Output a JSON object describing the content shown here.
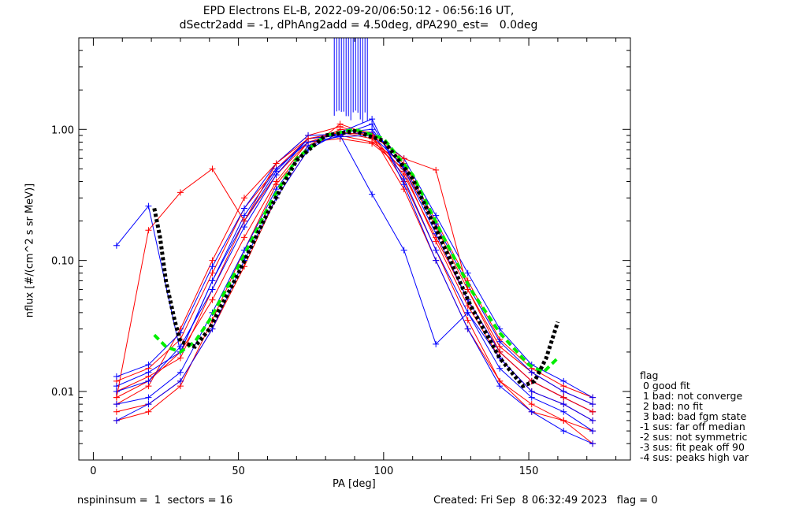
{
  "header": {
    "title_line1": "EPD Electrons EL-B, 2022-09-20/06:50:12 - 06:56:16 UT,",
    "title_line2": "dSectr2add = -1, dPhAng2add = 4.50deg, dPA290_est=   0.0deg"
  },
  "footer": {
    "left": "nspininsum =  1  sectors = 16",
    "right": "Created: Fri Sep  8 06:32:49 2023   flag = 0"
  },
  "legend": {
    "title": "flag",
    "items": [
      " 0 good fit",
      " 1 bad: not converge",
      " 2 bad: no fit",
      " 3 bad: bad fgm state",
      "-1 sus: far off median",
      "-2 sus: not symmetric",
      "-3 sus: fit peak off 90",
      "-4 sus: peaks high var"
    ]
  },
  "colors": {
    "red": "#ff0000",
    "blue": "#0000ff",
    "green": "#00ee00",
    "black": "#000000"
  },
  "chart_data": {
    "type": "line",
    "xlabel": "PA [deg]",
    "ylabel": "nflux [#/(cm^2 s sr MeV)]",
    "xlim": [
      -5,
      185
    ],
    "ylim": [
      0.003,
      5
    ],
    "yscale": "log",
    "xticks": [
      0,
      50,
      100,
      150
    ],
    "xtick_labels": [
      "0",
      "50",
      "100",
      "150"
    ],
    "yticks": [
      0.01,
      0.1,
      1.0
    ],
    "ytick_labels": [
      "0.01",
      "0.10",
      "1.00"
    ],
    "pa_bins": [
      8,
      19,
      30,
      41,
      52,
      63,
      74,
      85,
      96,
      107,
      118,
      129,
      140,
      151,
      162,
      172
    ],
    "series": [
      {
        "color": "red",
        "values": [
          0.009,
          0.012,
          0.02,
          0.05,
          0.15,
          0.4,
          0.8,
          0.95,
          0.85,
          0.45,
          0.15,
          0.05,
          0.02,
          0.012,
          0.009,
          0.007
        ]
      },
      {
        "color": "red",
        "values": [
          0.007,
          0.008,
          0.012,
          0.03,
          0.09,
          0.3,
          0.7,
          1.1,
          0.9,
          0.35,
          0.1,
          0.03,
          0.012,
          0.007,
          0.006,
          0.005
        ]
      },
      {
        "color": "red",
        "values": [
          0.012,
          0.015,
          0.025,
          0.08,
          0.25,
          0.5,
          0.85,
          0.9,
          0.8,
          0.55,
          0.2,
          0.07,
          0.025,
          0.015,
          0.011,
          0.009
        ]
      },
      {
        "color": "red",
        "values": [
          0.006,
          0.007,
          0.011,
          0.035,
          0.12,
          0.38,
          0.75,
          1.0,
          0.95,
          0.4,
          0.12,
          0.035,
          0.012,
          0.008,
          0.006,
          0.004
        ]
      },
      {
        "color": "red",
        "values": [
          0.01,
          0.013,
          0.018,
          0.06,
          0.2,
          0.45,
          0.8,
          0.85,
          0.78,
          0.5,
          0.18,
          0.06,
          0.022,
          0.014,
          0.01,
          0.008
        ]
      },
      {
        "color": "red",
        "values": [
          0.008,
          0.011,
          0.03,
          0.1,
          0.3,
          0.55,
          0.9,
          1.05,
          0.88,
          0.48,
          0.14,
          0.045,
          0.018,
          0.01,
          0.008,
          0.006
        ]
      },
      {
        "color": "blue",
        "values": [
          0.01,
          0.012,
          0.022,
          0.06,
          0.18,
          0.45,
          0.85,
          0.95,
          1.0,
          0.5,
          0.16,
          0.05,
          0.02,
          0.012,
          0.009,
          0.007
        ]
      },
      {
        "color": "blue",
        "values": [
          0.008,
          0.009,
          0.014,
          0.04,
          0.12,
          0.35,
          0.75,
          0.9,
          1.1,
          0.42,
          0.12,
          0.04,
          0.015,
          0.009,
          0.007,
          0.005
        ]
      },
      {
        "color": "blue",
        "values": [
          0.013,
          0.016,
          0.028,
          0.09,
          0.25,
          0.55,
          0.9,
          0.92,
          0.95,
          0.6,
          0.22,
          0.08,
          0.03,
          0.016,
          0.012,
          0.009
        ]
      },
      {
        "color": "blue",
        "values": [
          0.006,
          0.008,
          0.012,
          0.03,
          0.1,
          0.3,
          0.7,
          0.95,
          1.2,
          0.38,
          0.1,
          0.03,
          0.011,
          0.007,
          0.005,
          0.004
        ]
      },
      {
        "color": "blue",
        "values": [
          0.011,
          0.014,
          0.02,
          0.07,
          0.22,
          0.5,
          0.8,
          0.88,
          0.9,
          0.52,
          0.19,
          0.065,
          0.024,
          0.014,
          0.01,
          0.008
        ]
      },
      {
        "color": "blue",
        "values": [
          0.13,
          0.26,
          0.02,
          0.07,
          0.2,
          0.48,
          0.85,
          0.9,
          0.32,
          0.12,
          0.023,
          0.04,
          0.018,
          0.01,
          0.008,
          0.006
        ]
      },
      {
        "color": "red",
        "values": [
          0.009,
          0.17,
          0.33,
          0.5,
          0.2,
          0.55,
          0.85,
          0.95,
          0.9,
          0.6,
          0.49,
          0.06,
          0.02,
          0.012,
          0.009,
          0.007
        ]
      }
    ],
    "fits": [
      {
        "color": "green",
        "style": "dashed",
        "x": [
          21,
          25,
          30,
          35,
          40,
          50,
          60,
          70,
          80,
          90,
          100,
          110,
          120,
          130,
          140,
          150,
          155,
          160
        ],
        "y": [
          0.027,
          0.022,
          0.02,
          0.024,
          0.035,
          0.09,
          0.25,
          0.6,
          0.9,
          1.0,
          0.85,
          0.45,
          0.16,
          0.06,
          0.028,
          0.016,
          0.014,
          0.018
        ]
      },
      {
        "color": "black",
        "style": "dotted",
        "x": [
          21,
          23,
          25,
          28,
          30,
          35,
          40,
          50,
          60,
          70,
          80,
          90,
          100,
          110,
          120,
          130,
          140,
          148,
          152,
          156,
          160
        ],
        "y": [
          0.25,
          0.15,
          0.07,
          0.035,
          0.024,
          0.022,
          0.03,
          0.08,
          0.23,
          0.58,
          0.9,
          0.97,
          0.82,
          0.42,
          0.14,
          0.045,
          0.018,
          0.011,
          0.012,
          0.018,
          0.034
        ]
      }
    ]
  }
}
